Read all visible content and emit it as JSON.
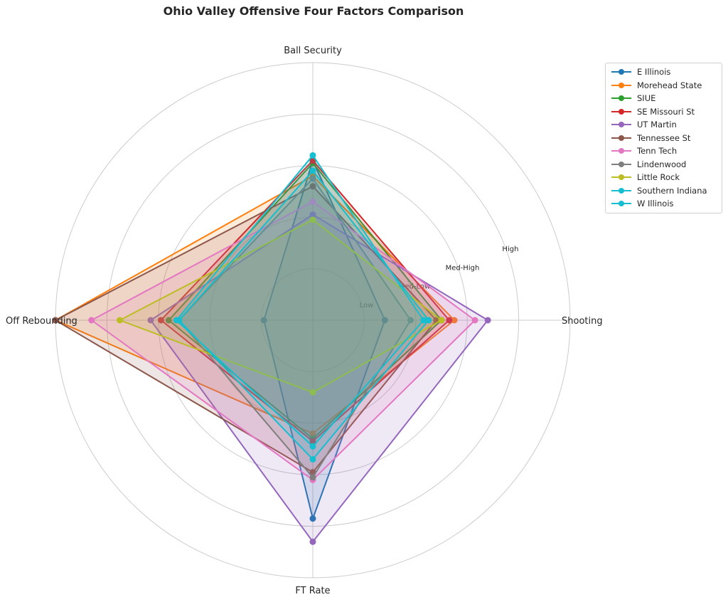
{
  "chart_data": {
    "type": "radar",
    "title": "Ohio Valley Offensive Four Factors Comparison",
    "axes": [
      "Ball Security",
      "Shooting",
      "FT Rate",
      "Off Rebounding"
    ],
    "rlim": [
      0,
      1
    ],
    "ring_values": [
      0.2,
      0.4,
      0.6,
      0.8,
      1.0
    ],
    "ring_labels": [
      "Low",
      "Med-Low",
      "Med-High",
      "High"
    ],
    "legend_position": "top-right, outside",
    "series": [
      {
        "name": "E Illinois",
        "color": "#1f77b4",
        "values": [
          0.62,
          0.28,
          0.77,
          0.19
        ]
      },
      {
        "name": "Morehead State",
        "color": "#ff7f0e",
        "values": [
          0.56,
          0.55,
          0.44,
          1.0
        ]
      },
      {
        "name": "SIUE",
        "color": "#2ca02c",
        "values": [
          0.61,
          0.5,
          0.46,
          0.56
        ]
      },
      {
        "name": "SE Missouri St",
        "color": "#d62728",
        "values": [
          0.62,
          0.53,
          0.47,
          0.59
        ]
      },
      {
        "name": "UT Martin",
        "color": "#9467bd",
        "values": [
          0.41,
          0.68,
          0.86,
          0.63
        ]
      },
      {
        "name": "Tennessee St",
        "color": "#8c564b",
        "values": [
          0.52,
          0.48,
          0.59,
          1.0
        ]
      },
      {
        "name": "Tenn Tech",
        "color": "#e377c2",
        "values": [
          0.46,
          0.63,
          0.62,
          0.86
        ]
      },
      {
        "name": "Lindenwood",
        "color": "#7f7f7f",
        "values": [
          0.55,
          0.38,
          0.61,
          0.52
        ]
      },
      {
        "name": "Little Rock",
        "color": "#bcbd22",
        "values": [
          0.39,
          0.5,
          0.28,
          0.75
        ]
      },
      {
        "name": "Southern Indiana",
        "color": "#17becf",
        "values": [
          0.58,
          0.45,
          0.54,
          0.52
        ]
      },
      {
        "name": "W Illinois",
        "color": "#17becf",
        "values": [
          0.64,
          0.43,
          0.49,
          0.53
        ]
      }
    ]
  }
}
